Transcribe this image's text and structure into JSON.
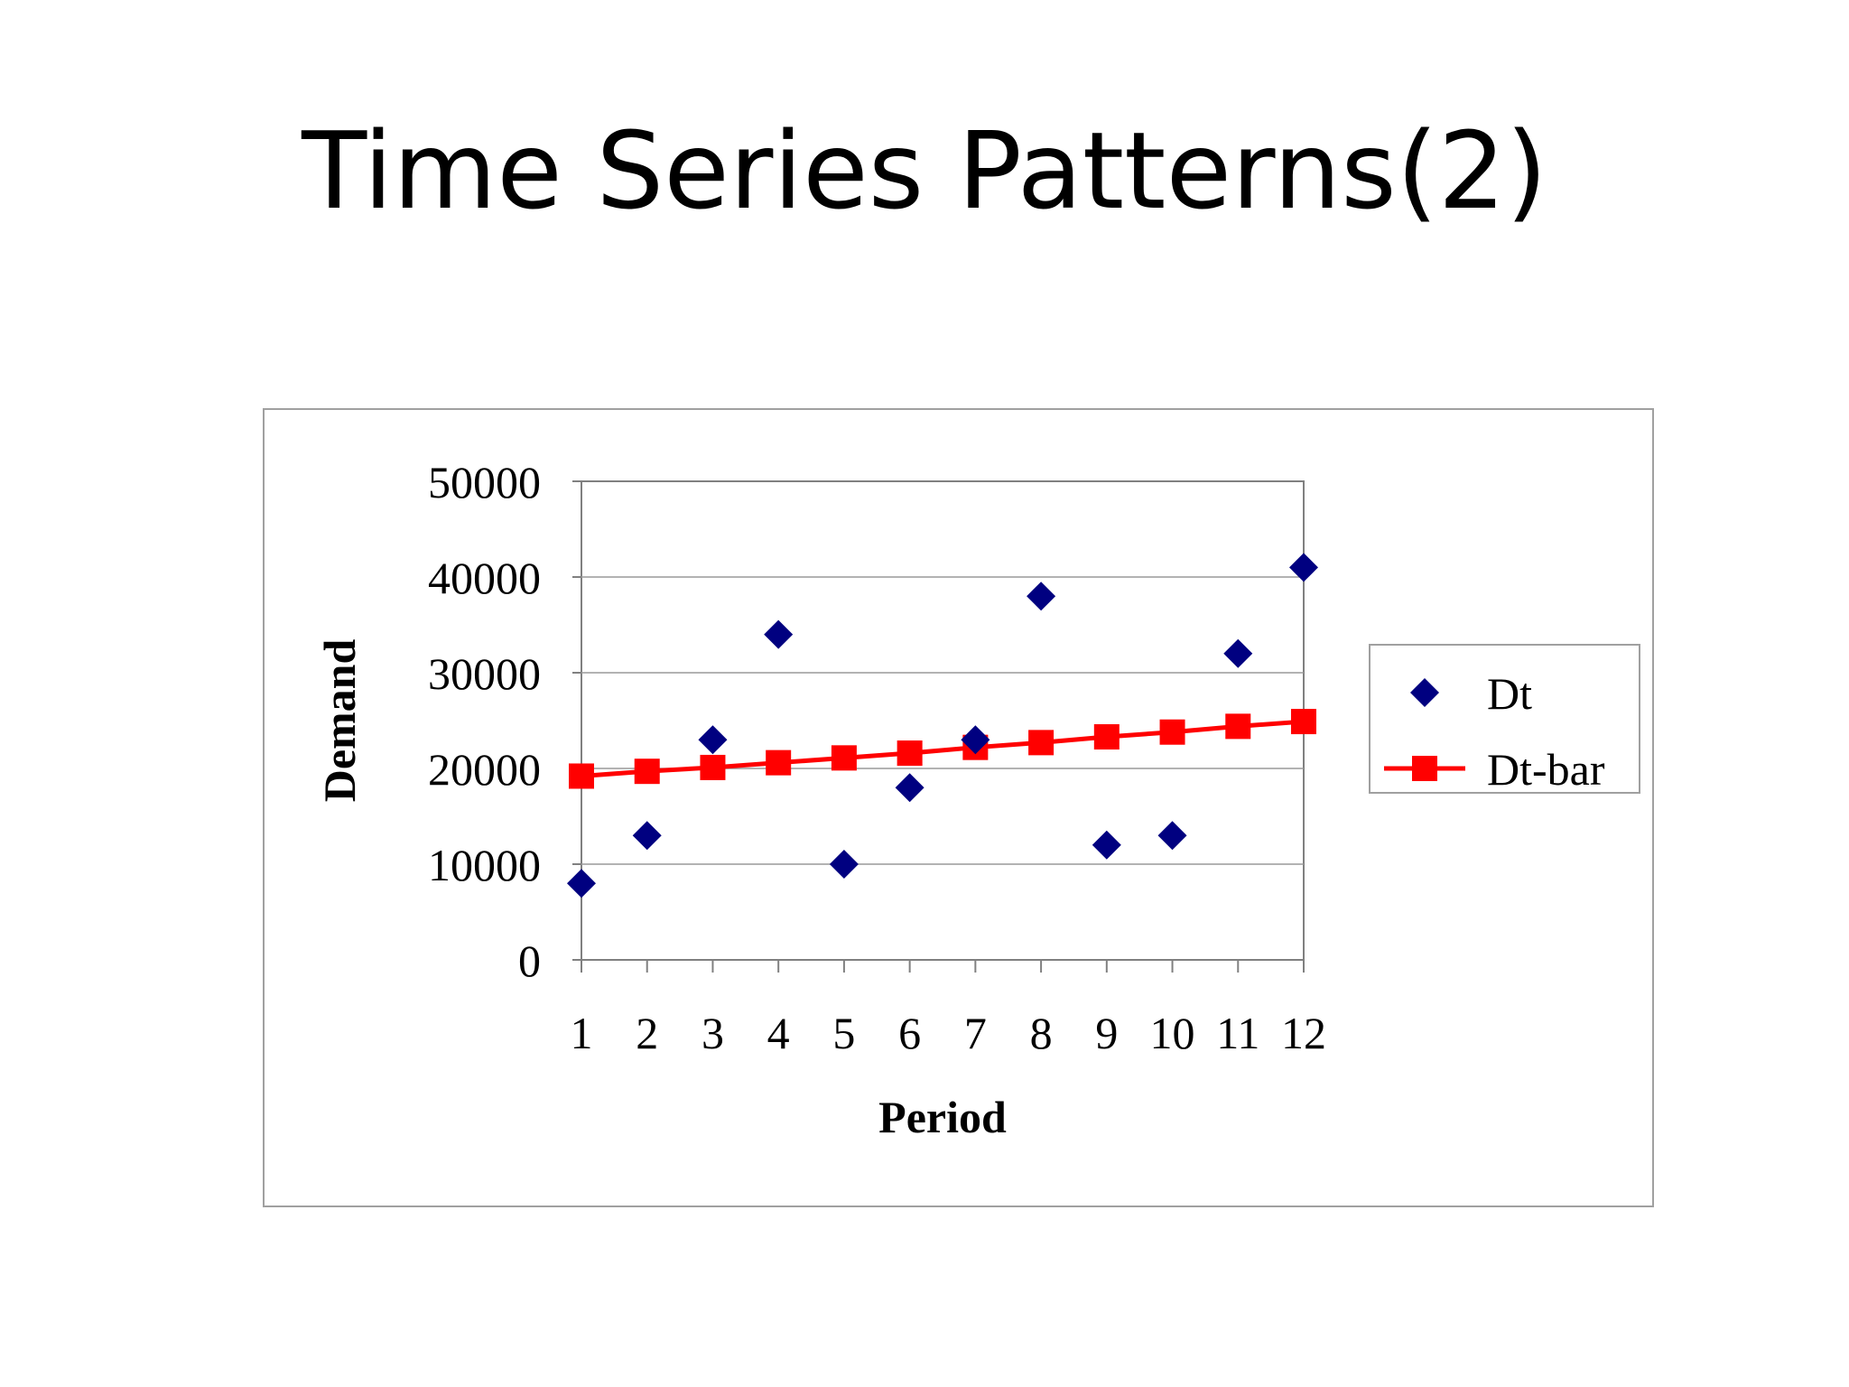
{
  "slide": {
    "title": "Time Series Patterns(2)"
  },
  "chart_data": {
    "type": "scatter",
    "xlabel": "Period",
    "ylabel": "Demand",
    "ylim": [
      0,
      50000
    ],
    "yticks": [
      0,
      10000,
      20000,
      30000,
      40000,
      50000
    ],
    "x": [
      1,
      2,
      3,
      4,
      5,
      6,
      7,
      8,
      9,
      10,
      11,
      12
    ],
    "grid": "horizontal",
    "legend": "right",
    "series": [
      {
        "name": "Dt",
        "style": "markers",
        "marker": "diamond",
        "color": "#000080",
        "values": [
          8000,
          13000,
          23000,
          34000,
          10000,
          18000,
          23000,
          38000,
          12000,
          13000,
          32000,
          41000
        ]
      },
      {
        "name": "Dt-bar",
        "style": "line-markers",
        "marker": "square",
        "color": "#ff0000",
        "values": [
          19200,
          19700,
          20100,
          20600,
          21100,
          21600,
          22200,
          22700,
          23300,
          23800,
          24400,
          24900
        ]
      }
    ]
  }
}
